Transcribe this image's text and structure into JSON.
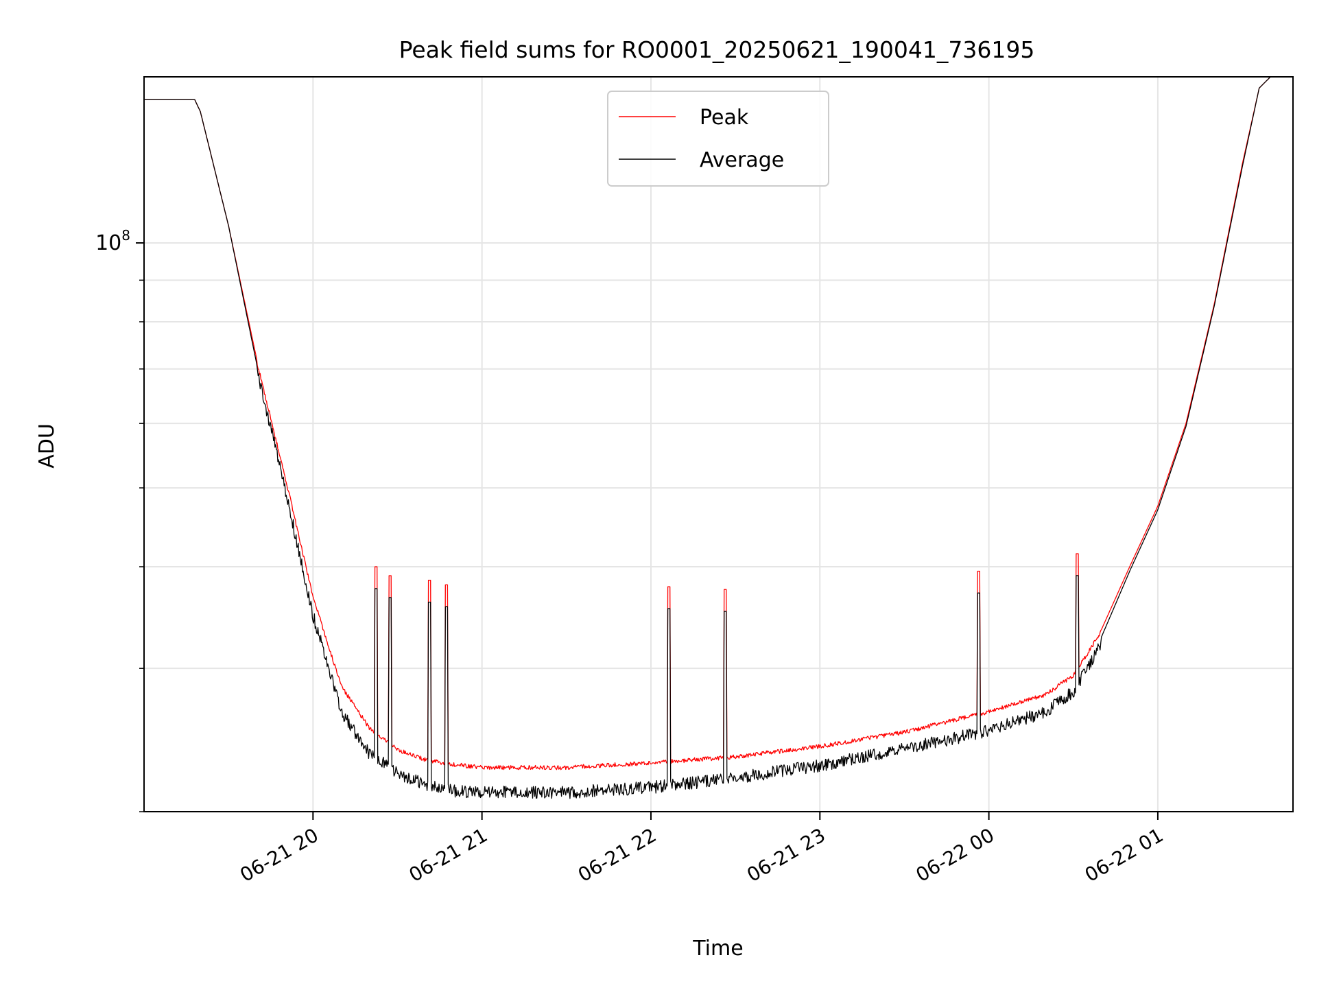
{
  "chart_data": {
    "type": "line",
    "title": "Peak field sums for RO0001_20250621_190041_736195",
    "xlabel": "Time",
    "ylabel": "ADU",
    "yscale": "log",
    "grid": true,
    "legend_position": "top-center",
    "xlim": [
      "2025-06-21 19:00",
      "2025-06-22 01:48"
    ],
    "ylim": [
      20000000,
      160000000
    ],
    "x_ticks": [
      {
        "value": "2025-06-21 20:00",
        "label": "06-21 20"
      },
      {
        "value": "2025-06-21 21:00",
        "label": "06-21 21"
      },
      {
        "value": "2025-06-21 22:00",
        "label": "06-21 22"
      },
      {
        "value": "2025-06-21 23:00",
        "label": "06-21 23"
      },
      {
        "value": "2025-06-22 00:00",
        "label": "06-22 00"
      },
      {
        "value": "2025-06-22 01:00",
        "label": "06-22 01"
      }
    ],
    "y_major_ticks": [
      {
        "value": 100000000,
        "base": "10",
        "exp": "8"
      }
    ],
    "series": [
      {
        "name": "Peak",
        "color": "#ff0000",
        "x": [
          "2025-06-21 19:00",
          "2025-06-21 19:18",
          "2025-06-21 19:20",
          "2025-06-21 19:30",
          "2025-06-21 19:40",
          "2025-06-21 19:50",
          "2025-06-21 20:00",
          "2025-06-21 20:10",
          "2025-06-21 20:20",
          "2025-06-21 20:30",
          "2025-06-21 20:40",
          "2025-06-21 20:50",
          "2025-06-21 21:00",
          "2025-06-21 21:30",
          "2025-06-21 22:00",
          "2025-06-21 22:30",
          "2025-06-21 23:00",
          "2025-06-21 23:30",
          "2025-06-22 00:00",
          "2025-06-22 00:20",
          "2025-06-22 00:30",
          "2025-06-22 00:40",
          "2025-06-22 00:50",
          "2025-06-22 01:00",
          "2025-06-22 01:10",
          "2025-06-22 01:20",
          "2025-06-22 01:30",
          "2025-06-22 01:36",
          "2025-06-22 01:40",
          "2025-06-22 01:48"
        ],
        "y": [
          150000000,
          150000000,
          145000000,
          105000000,
          72000000,
          52000000,
          37000000,
          28700000,
          25500000,
          24000000,
          23300000,
          23000000,
          22800000,
          22800000,
          23100000,
          23500000,
          24200000,
          25200000,
          26700000,
          28000000,
          29600000,
          33500000,
          40000000,
          47500000,
          60000000,
          84000000,
          125000000,
          155000000,
          160000000,
          160000000
        ]
      },
      {
        "name": "Average",
        "color": "#000000",
        "x": [
          "2025-06-21 19:00",
          "2025-06-21 19:18",
          "2025-06-21 19:20",
          "2025-06-21 19:30",
          "2025-06-21 19:40",
          "2025-06-21 19:50",
          "2025-06-21 20:00",
          "2025-06-21 20:10",
          "2025-06-21 20:20",
          "2025-06-21 20:30",
          "2025-06-21 20:40",
          "2025-06-21 20:50",
          "2025-06-21 21:00",
          "2025-06-21 21:30",
          "2025-06-21 22:00",
          "2025-06-21 22:30",
          "2025-06-21 23:00",
          "2025-06-21 23:30",
          "2025-06-22 00:00",
          "2025-06-22 00:20",
          "2025-06-22 00:30",
          "2025-06-22 00:40",
          "2025-06-22 00:50",
          "2025-06-22 01:00",
          "2025-06-22 01:10",
          "2025-06-22 01:20",
          "2025-06-22 01:30",
          "2025-06-22 01:36",
          "2025-06-22 01:40",
          "2025-06-22 01:48"
        ],
        "y": [
          150000000,
          150000000,
          145000000,
          105000000,
          71000000,
          51000000,
          35500000,
          27000000,
          24000000,
          22700000,
          22000000,
          21600000,
          21500000,
          21500000,
          21800000,
          22400000,
          23200000,
          24300000,
          25600000,
          27000000,
          28600000,
          32800000,
          39500000,
          47000000,
          59500000,
          83500000,
          124000000,
          155000000,
          160000000,
          160000000
        ]
      }
    ],
    "spikes": [
      {
        "x": "2025-06-21 20:22",
        "y": 40000000
      },
      {
        "x": "2025-06-21 20:27",
        "y": 39000000
      },
      {
        "x": "2025-06-21 20:41",
        "y": 38500000
      },
      {
        "x": "2025-06-21 20:47",
        "y": 38000000
      },
      {
        "x": "2025-06-21 22:06",
        "y": 37800000
      },
      {
        "x": "2025-06-21 22:26",
        "y": 37500000
      },
      {
        "x": "2025-06-21 23:56",
        "y": 39500000
      },
      {
        "x": "2025-06-22 00:31",
        "y": 41500000
      }
    ]
  }
}
